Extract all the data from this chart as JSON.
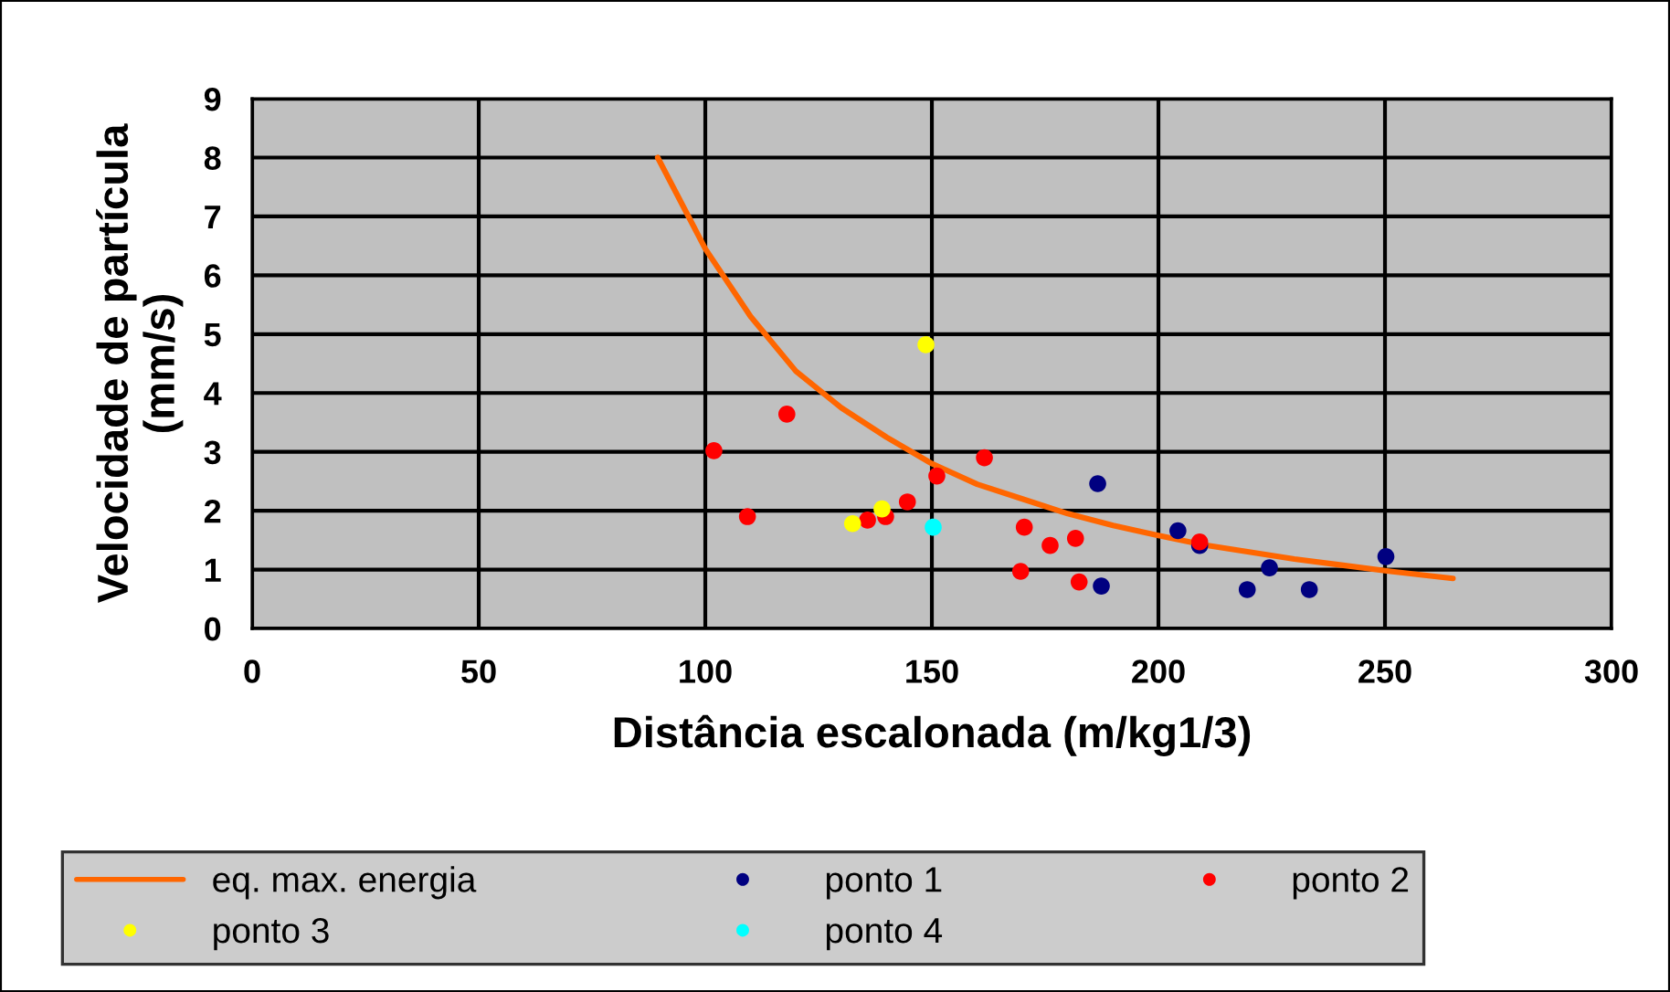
{
  "chart_data": {
    "type": "scatter",
    "xlabel": "Distância escalonada (m/kg1/3)",
    "ylabel": "Velocidade de partícula\n(mm/s)",
    "xlim": [
      0,
      300
    ],
    "xticks": [
      0,
      50,
      100,
      150,
      200,
      250,
      300
    ],
    "ylim": [
      0,
      9
    ],
    "yticks": [
      0,
      1,
      2,
      3,
      4,
      5,
      6,
      7,
      8,
      9
    ],
    "grid": true,
    "legend": "bottom",
    "series": [
      {
        "name": "eq. max. energia",
        "type": "line",
        "color": "#ff6600",
        "x": [
          89.5,
          100,
          110,
          120,
          130,
          140,
          150,
          160,
          170,
          180,
          190,
          200,
          210,
          220,
          230,
          240,
          250,
          265
        ],
        "values": [
          8.0,
          6.45,
          5.3,
          4.37,
          3.75,
          3.25,
          2.8,
          2.45,
          2.2,
          1.95,
          1.75,
          1.58,
          1.42,
          1.3,
          1.18,
          1.08,
          0.98,
          0.85
        ]
      },
      {
        "name": "ponto 1",
        "marker": "circle",
        "color": "#000080",
        "x": [
          186.6,
          187.4,
          204.3,
          209.1,
          224.5,
          219.6,
          233.3,
          250.2
        ],
        "values": [
          2.46,
          0.72,
          1.66,
          1.41,
          1.03,
          0.66,
          0.66,
          1.22
        ]
      },
      {
        "name": "ponto 2",
        "marker": "circle",
        "color": "#ff0000",
        "x": [
          101.9,
          109.3,
          118.0,
          135.8,
          139.8,
          144.6,
          151.1,
          161.6,
          170.4,
          176.1,
          181.7,
          169.6,
          182.5,
          209.1
        ],
        "values": [
          3.02,
          1.9,
          3.64,
          1.84,
          1.9,
          2.15,
          2.59,
          2.9,
          1.72,
          1.41,
          1.53,
          0.97,
          0.79,
          1.47
        ]
      },
      {
        "name": "ponto 3",
        "marker": "circle",
        "color": "#ffff00",
        "x": [
          148.7,
          132.5,
          139.0
        ],
        "values": [
          4.82,
          1.78,
          2.03
        ]
      },
      {
        "name": "ponto 4",
        "marker": "circle",
        "color": "#00ffff",
        "x": [
          150.3
        ],
        "values": [
          1.72
        ]
      }
    ]
  }
}
